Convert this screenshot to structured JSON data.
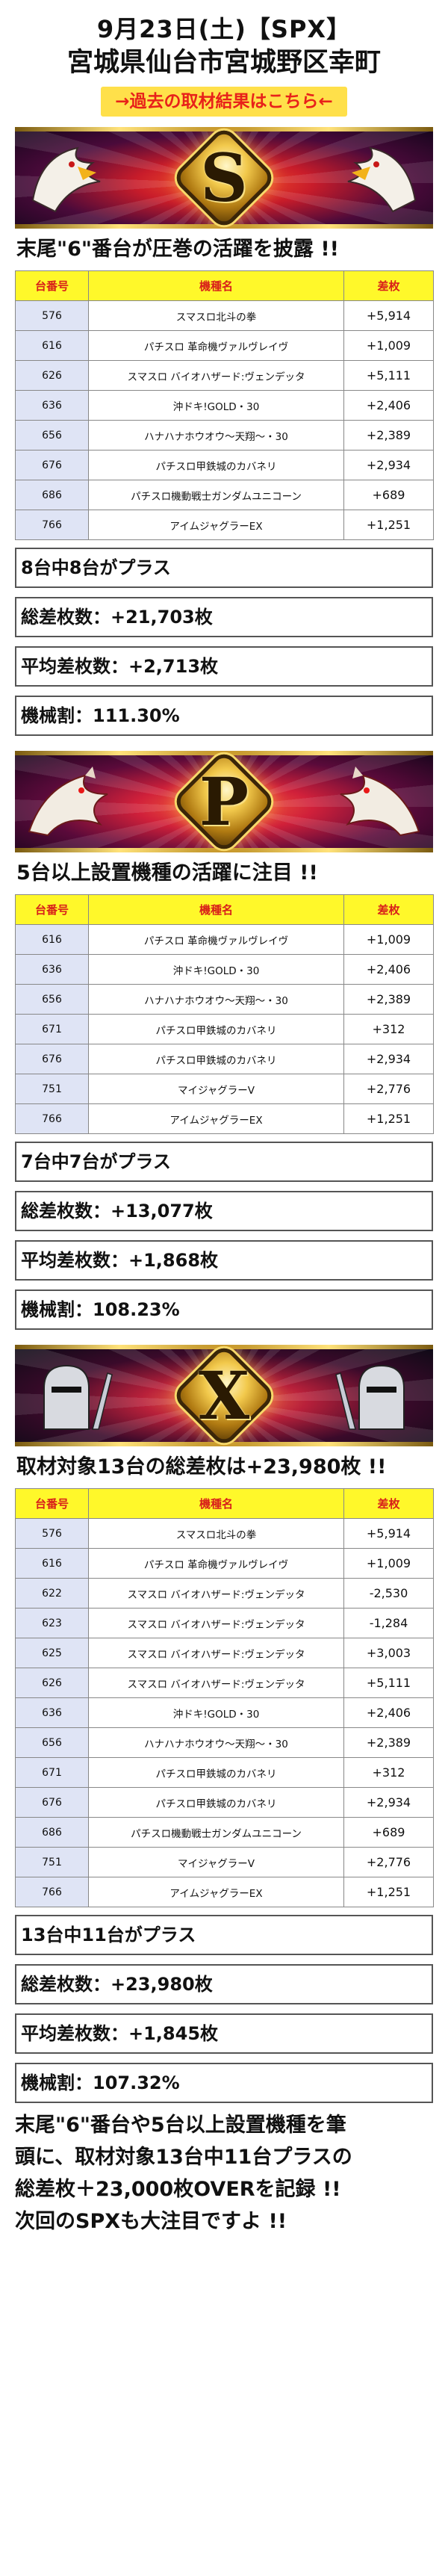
{
  "header": {
    "date": "9月23日(土)【SPX】",
    "place": "宮城県仙台市宮城野区幸町",
    "past_link": "→過去の取材結果はこちら←"
  },
  "colors": {
    "accent_red": "#e8211a",
    "table_head_bg": "#fff82a",
    "no_cell_bg": "#dfe4f5"
  },
  "columns": {
    "no": "台番号",
    "name": "機種名",
    "diff": "差枚"
  },
  "sections": {
    "s": {
      "banner_letter": "S",
      "title": "末尾\"6\"番台が圧巻の活躍を披露 !!",
      "rows": [
        {
          "no": "576",
          "name": "スマスロ北斗の拳",
          "diff": "+5,914"
        },
        {
          "no": "616",
          "name": "パチスロ 革命機ヴァルヴレイヴ",
          "diff": "+1,009"
        },
        {
          "no": "626",
          "name": "スマスロ バイオハザード:ヴェンデッタ",
          "diff": "+5,111"
        },
        {
          "no": "636",
          "name": "沖ドキ!GOLD・30",
          "diff": "+2,406"
        },
        {
          "no": "656",
          "name": "ハナハナホウオウ～天翔～・30",
          "diff": "+2,389"
        },
        {
          "no": "676",
          "name": "パチスロ甲鉄城のカバネリ",
          "diff": "+2,934"
        },
        {
          "no": "686",
          "name": "パチスロ機動戦士ガンダムユニコーン",
          "diff": "+689"
        },
        {
          "no": "766",
          "name": "アイムジャグラーEX",
          "diff": "+1,251"
        }
      ],
      "plus_text": "8台中8台がプラス",
      "total": "総差枚数：+21,703枚",
      "avg": "平均差枚数：+2,713枚",
      "rate": "機械割：111.30%"
    },
    "p": {
      "banner_letter": "P",
      "title": "5台以上設置機種の活躍に注目 !!",
      "rows": [
        {
          "no": "616",
          "name": "パチスロ 革命機ヴァルヴレイヴ",
          "diff": "+1,009"
        },
        {
          "no": "636",
          "name": "沖ドキ!GOLD・30",
          "diff": "+2,406"
        },
        {
          "no": "656",
          "name": "ハナハナホウオウ～天翔～・30",
          "diff": "+2,389"
        },
        {
          "no": "671",
          "name": "パチスロ甲鉄城のカバネリ",
          "diff": "+312"
        },
        {
          "no": "676",
          "name": "パチスロ甲鉄城のカバネリ",
          "diff": "+2,934"
        },
        {
          "no": "751",
          "name": "マイジャグラーV",
          "diff": "+2,776"
        },
        {
          "no": "766",
          "name": "アイムジャグラーEX",
          "diff": "+1,251"
        }
      ],
      "plus_text": "7台中7台がプラス",
      "total": "総差枚数：+13,077枚",
      "avg": "平均差枚数：+1,868枚",
      "rate": "機械割：108.23%"
    },
    "x": {
      "banner_letter": "X",
      "title": "取材対象13台の総差枚は+23,980枚 !!",
      "rows": [
        {
          "no": "576",
          "name": "スマスロ北斗の拳",
          "diff": "+5,914"
        },
        {
          "no": "616",
          "name": "パチスロ 革命機ヴァルヴレイヴ",
          "diff": "+1,009"
        },
        {
          "no": "622",
          "name": "スマスロ バイオハザード:ヴェンデッタ",
          "diff": "-2,530"
        },
        {
          "no": "623",
          "name": "スマスロ バイオハザード:ヴェンデッタ",
          "diff": "-1,284"
        },
        {
          "no": "625",
          "name": "スマスロ バイオハザード:ヴェンデッタ",
          "diff": "+3,003"
        },
        {
          "no": "626",
          "name": "スマスロ バイオハザード:ヴェンデッタ",
          "diff": "+5,111"
        },
        {
          "no": "636",
          "name": "沖ドキ!GOLD・30",
          "diff": "+2,406"
        },
        {
          "no": "656",
          "name": "ハナハナホウオウ～天翔～・30",
          "diff": "+2,389"
        },
        {
          "no": "671",
          "name": "パチスロ甲鉄城のカバネリ",
          "diff": "+312"
        },
        {
          "no": "676",
          "name": "パチスロ甲鉄城のカバネリ",
          "diff": "+2,934"
        },
        {
          "no": "686",
          "name": "パチスロ機動戦士ガンダムユニコーン",
          "diff": "+689"
        },
        {
          "no": "751",
          "name": "マイジャグラーV",
          "diff": "+2,776"
        },
        {
          "no": "766",
          "name": "アイムジャグラーEX",
          "diff": "+1,251"
        }
      ],
      "plus_text": "13台中11台がプラス",
      "total": "総差枚数：+23,980枚",
      "avg": "平均差枚数：+1,845枚",
      "rate": "機械割：107.32%"
    }
  },
  "summary": [
    "末尾\"6\"番台や5台以上設置機種を筆",
    "頭に、取材対象13台中11台プラスの",
    "総差枚＋23,000枚OVERを記録 !!",
    "次回のSPXも大注目ですよ !!"
  ]
}
